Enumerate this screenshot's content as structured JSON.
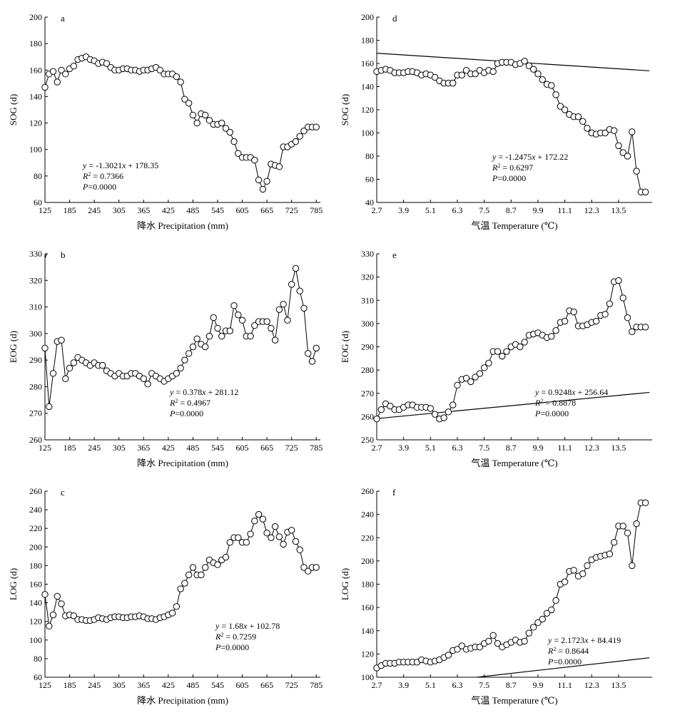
{
  "chart_data": [
    {
      "type": "line",
      "panel_label": "a",
      "xlabel": "降水 Precipitation (mm)",
      "ylabel": "SOG (d)",
      "xlim": [
        125,
        795
      ],
      "ylim": [
        60,
        200
      ],
      "xticks": [
        125,
        185,
        245,
        305,
        365,
        425,
        485,
        545,
        605,
        665,
        725,
        785
      ],
      "yticks": [
        60,
        80,
        100,
        120,
        140,
        160,
        180,
        200
      ],
      "x": [
        125,
        135,
        145,
        155,
        165,
        175,
        185,
        195,
        205,
        215,
        225,
        235,
        245,
        255,
        265,
        275,
        285,
        295,
        305,
        315,
        325,
        335,
        345,
        355,
        365,
        375,
        385,
        395,
        405,
        415,
        425,
        435,
        445,
        455,
        465,
        475,
        485,
        495,
        505,
        515,
        525,
        535,
        545,
        555,
        565,
        575,
        585,
        595,
        605,
        615,
        625,
        635,
        645,
        655,
        665,
        675,
        685,
        695,
        705,
        715,
        725,
        735,
        745,
        755,
        765,
        775,
        785
      ],
      "series": [
        {
          "values": [
            147,
            157,
            159,
            151,
            160,
            157,
            161,
            163,
            168,
            169,
            170,
            168,
            167,
            165,
            166,
            165,
            162,
            160,
            160,
            161,
            161,
            160,
            160,
            159,
            160,
            160,
            161,
            162,
            160,
            157,
            157,
            157,
            155,
            151,
            138,
            135,
            126,
            120,
            127,
            126,
            122,
            119,
            119,
            120,
            116,
            113,
            106,
            97,
            94,
            94,
            94,
            92,
            77,
            70,
            76,
            89,
            88,
            87,
            102,
            102,
            104,
            106,
            110,
            114,
            117,
            117,
            117
          ]
        }
      ],
      "fit": {
        "slope": -1.3021,
        "intercept": 178.35
      },
      "equation": [
        "y = -1.3021x + 178.35",
        "R2 = 0.7366",
        "P=0.0000"
      ]
    },
    {
      "type": "line",
      "panel_label": "b",
      "xlabel": "降水 Precipitation (mm)",
      "ylabel": "EOG (d)",
      "xlim": [
        125,
        795
      ],
      "ylim": [
        260,
        330
      ],
      "xticks": [
        125,
        185,
        245,
        305,
        365,
        425,
        485,
        545,
        605,
        665,
        725,
        785
      ],
      "yticks": [
        260,
        270,
        280,
        290,
        300,
        310,
        320,
        330
      ],
      "x": [
        125,
        135,
        145,
        155,
        165,
        175,
        185,
        195,
        205,
        215,
        225,
        235,
        245,
        255,
        265,
        275,
        285,
        295,
        305,
        315,
        325,
        335,
        345,
        355,
        365,
        375,
        385,
        395,
        405,
        415,
        425,
        435,
        445,
        455,
        465,
        475,
        485,
        495,
        505,
        515,
        525,
        535,
        545,
        555,
        565,
        575,
        585,
        595,
        605,
        615,
        625,
        635,
        645,
        655,
        665,
        675,
        685,
        695,
        705,
        715,
        725,
        735,
        745,
        755,
        765,
        775,
        785
      ],
      "series": [
        {
          "values": [
            294.5,
            272.5,
            285,
            297,
            297.5,
            283,
            287,
            289,
            291,
            290,
            289,
            288,
            289,
            288,
            288,
            286,
            285,
            284,
            285,
            284,
            284,
            285,
            285,
            284,
            283,
            281,
            285,
            284,
            283,
            282,
            283,
            284,
            285,
            287,
            290,
            292.5,
            295,
            298,
            296,
            295,
            299,
            306,
            302,
            299,
            301,
            301,
            310.5,
            307,
            305,
            299,
            299,
            303,
            304.5,
            304.5,
            304.5,
            302,
            297.5,
            309,
            311,
            305,
            318.5,
            324.5,
            316,
            309.5,
            292.5,
            289.5,
            294.5
          ]
        }
      ],
      "fit": {
        "slope": 0.378,
        "intercept": 281.12
      },
      "equation": [
        "y = 0.378x + 281.12",
        "R2 = 0.4967",
        "P=0.0000"
      ]
    },
    {
      "type": "line",
      "panel_label": "c",
      "xlabel": "降水 Precipitation (mm)",
      "ylabel": "LOG (d)",
      "xlim": [
        125,
        795
      ],
      "ylim": [
        60,
        260
      ],
      "xticks": [
        125,
        185,
        245,
        305,
        365,
        425,
        485,
        545,
        605,
        665,
        725,
        785
      ],
      "yticks": [
        60,
        80,
        100,
        120,
        140,
        160,
        180,
        200,
        220,
        240,
        260
      ],
      "x": [
        125,
        135,
        145,
        155,
        165,
        175,
        185,
        195,
        205,
        215,
        225,
        235,
        245,
        255,
        265,
        275,
        285,
        295,
        305,
        315,
        325,
        335,
        345,
        355,
        365,
        375,
        385,
        395,
        405,
        415,
        425,
        435,
        445,
        455,
        465,
        475,
        485,
        495,
        505,
        515,
        525,
        535,
        545,
        555,
        565,
        575,
        585,
        595,
        605,
        615,
        625,
        635,
        645,
        655,
        665,
        675,
        685,
        695,
        705,
        715,
        725,
        735,
        745,
        755,
        765,
        775,
        785
      ],
      "series": [
        {
          "values": [
            149,
            115,
            127,
            147,
            139,
            126,
            127,
            126,
            122,
            122,
            121,
            121,
            122,
            124,
            123,
            122,
            124,
            125,
            125,
            124,
            124,
            125,
            125,
            126,
            125,
            123,
            123,
            122,
            124,
            125,
            127,
            129,
            136,
            155,
            161,
            170,
            178,
            170,
            170,
            178,
            186,
            183,
            181,
            186,
            189,
            205,
            210,
            210,
            205,
            205,
            214,
            228,
            235,
            230,
            215,
            210,
            222,
            211,
            203,
            216,
            218,
            206,
            197,
            178,
            174,
            178,
            178
          ]
        }
      ],
      "fit": {
        "slope": 1.68,
        "intercept": 102.78
      },
      "equation": [
        "y = 1.68x + 102.78",
        "R2 = 0.7259",
        "P=0.0000"
      ]
    },
    {
      "type": "line",
      "panel_label": "d",
      "xlabel": "气温 Temperature (℃)",
      "ylabel": "SOG (d)",
      "xlim": [
        2.7,
        15.0
      ],
      "ylim": [
        40,
        200
      ],
      "xticks": [
        2.7,
        3.9,
        5.1,
        6.3,
        7.5,
        8.7,
        9.9,
        11.1,
        12.3,
        13.5
      ],
      "yticks": [
        40,
        60,
        80,
        100,
        120,
        140,
        160,
        180,
        200
      ],
      "x": [
        2.7,
        2.9,
        3.1,
        3.3,
        3.5,
        3.7,
        3.9,
        4.1,
        4.3,
        4.5,
        4.7,
        4.9,
        5.1,
        5.3,
        5.5,
        5.7,
        5.9,
        6.1,
        6.3,
        6.5,
        6.7,
        6.9,
        7.1,
        7.3,
        7.5,
        7.7,
        7.9,
        8.1,
        8.3,
        8.5,
        8.7,
        8.9,
        9.1,
        9.3,
        9.5,
        9.7,
        9.9,
        10.1,
        10.3,
        10.5,
        10.7,
        10.9,
        11.1,
        11.3,
        11.5,
        11.7,
        11.9,
        12.1,
        12.3,
        12.5,
        12.7,
        12.9,
        13.1,
        13.3,
        13.5,
        13.7,
        13.9,
        14.1,
        14.3,
        14.5,
        14.7
      ],
      "series": [
        {
          "values": [
            153,
            154,
            155,
            154,
            152,
            152,
            152,
            153,
            153,
            152,
            150,
            151,
            150,
            148,
            145,
            143,
            143,
            143,
            150,
            150,
            154,
            151,
            151,
            154,
            152,
            154,
            153,
            160,
            161,
            161,
            161,
            159,
            160,
            162,
            158,
            155,
            151,
            146,
            142,
            141,
            133,
            123,
            120,
            116,
            114,
            114,
            110,
            104,
            100,
            99,
            100,
            100,
            103,
            102,
            89,
            83,
            80,
            101,
            67,
            49,
            49
          ]
        }
      ],
      "fit": {
        "slope": -1.2475,
        "intercept": 172.22
      },
      "equation": [
        "y = -1.2475x + 172.22",
        "R2 = 0.6297",
        "P=0.0000"
      ]
    },
    {
      "type": "line",
      "panel_label": "e",
      "xlabel": "气温 Temperature (℃)",
      "ylabel": "EOG (d)",
      "xlim": [
        2.7,
        15.0
      ],
      "ylim": [
        250,
        330
      ],
      "xticks": [
        2.7,
        3.9,
        5.1,
        6.3,
        7.5,
        8.7,
        9.9,
        11.1,
        12.3,
        13.5
      ],
      "yticks": [
        250,
        260,
        270,
        280,
        290,
        300,
        310,
        320,
        330
      ],
      "x": [
        2.7,
        2.9,
        3.1,
        3.3,
        3.5,
        3.7,
        3.9,
        4.1,
        4.3,
        4.5,
        4.7,
        4.9,
        5.1,
        5.3,
        5.5,
        5.7,
        5.9,
        6.1,
        6.3,
        6.5,
        6.7,
        6.9,
        7.1,
        7.3,
        7.5,
        7.7,
        7.9,
        8.1,
        8.3,
        8.5,
        8.7,
        8.9,
        9.1,
        9.3,
        9.5,
        9.7,
        9.9,
        10.1,
        10.3,
        10.5,
        10.7,
        10.9,
        11.1,
        11.3,
        11.5,
        11.7,
        11.9,
        12.1,
        12.3,
        12.5,
        12.7,
        12.9,
        13.1,
        13.3,
        13.5,
        13.7,
        13.9,
        14.1,
        14.3,
        14.5,
        14.7
      ],
      "series": [
        {
          "values": [
            259,
            263,
            265.5,
            264.5,
            263,
            263,
            264,
            265,
            265,
            264,
            264,
            264,
            263.5,
            261,
            259,
            259.5,
            262,
            265,
            273.5,
            276,
            276.5,
            275,
            277,
            278.5,
            281,
            283,
            288,
            288,
            286,
            288,
            290,
            291,
            290,
            292,
            295,
            295.5,
            296,
            295,
            294,
            294.5,
            297,
            300.5,
            301,
            305.5,
            305,
            299,
            299,
            299.5,
            300.5,
            301,
            303.5,
            304,
            308.5,
            318,
            318.5,
            311,
            302.5,
            296.5,
            298.5,
            298.5,
            298.5
          ]
        }
      ],
      "fit": {
        "slope": 0.9248,
        "intercept": 256.64
      },
      "equation": [
        "y = 0.9248x + 256.64",
        "R2 = 0.8878",
        "P=0.0000"
      ]
    },
    {
      "type": "line",
      "panel_label": "f",
      "xlabel": "气温 Temperature (℃)",
      "ylabel": "LOG (d)",
      "xlim": [
        2.7,
        15.0
      ],
      "ylim": [
        100,
        260
      ],
      "xticks": [
        2.7,
        3.9,
        5.1,
        6.3,
        7.5,
        8.7,
        9.9,
        11.1,
        12.3,
        13.5
      ],
      "yticks": [
        100,
        120,
        140,
        160,
        180,
        200,
        220,
        240,
        260
      ],
      "x": [
        2.7,
        2.9,
        3.1,
        3.3,
        3.5,
        3.7,
        3.9,
        4.1,
        4.3,
        4.5,
        4.7,
        4.9,
        5.1,
        5.3,
        5.5,
        5.7,
        5.9,
        6.1,
        6.3,
        6.5,
        6.7,
        6.9,
        7.1,
        7.3,
        7.5,
        7.7,
        7.9,
        8.1,
        8.3,
        8.5,
        8.7,
        8.9,
        9.1,
        9.3,
        9.5,
        9.7,
        9.9,
        10.1,
        10.3,
        10.5,
        10.7,
        10.9,
        11.1,
        11.3,
        11.5,
        11.7,
        11.9,
        12.1,
        12.3,
        12.5,
        12.7,
        12.9,
        13.1,
        13.3,
        13.5,
        13.7,
        13.9,
        14.1,
        14.3,
        14.5,
        14.7
      ],
      "series": [
        {
          "values": [
            108,
            110,
            112,
            112,
            112,
            113,
            113,
            113,
            113,
            113,
            115,
            114,
            113,
            114,
            115,
            117,
            119,
            123,
            124,
            127,
            124,
            125,
            126,
            126,
            129,
            131,
            136,
            129,
            126,
            128,
            130,
            132,
            130,
            131,
            138,
            143,
            147,
            150,
            155,
            158,
            166,
            180,
            182,
            191,
            192,
            187,
            189,
            196,
            201,
            203,
            204,
            205,
            206,
            216,
            230,
            230,
            224,
            196,
            232,
            250,
            250
          ]
        }
      ],
      "fit": {
        "slope": 2.1723,
        "intercept": 84.419
      },
      "equation": [
        "y = 2.1723x + 84.419",
        "R2 = 0.8644",
        "P=0.0000"
      ]
    }
  ]
}
